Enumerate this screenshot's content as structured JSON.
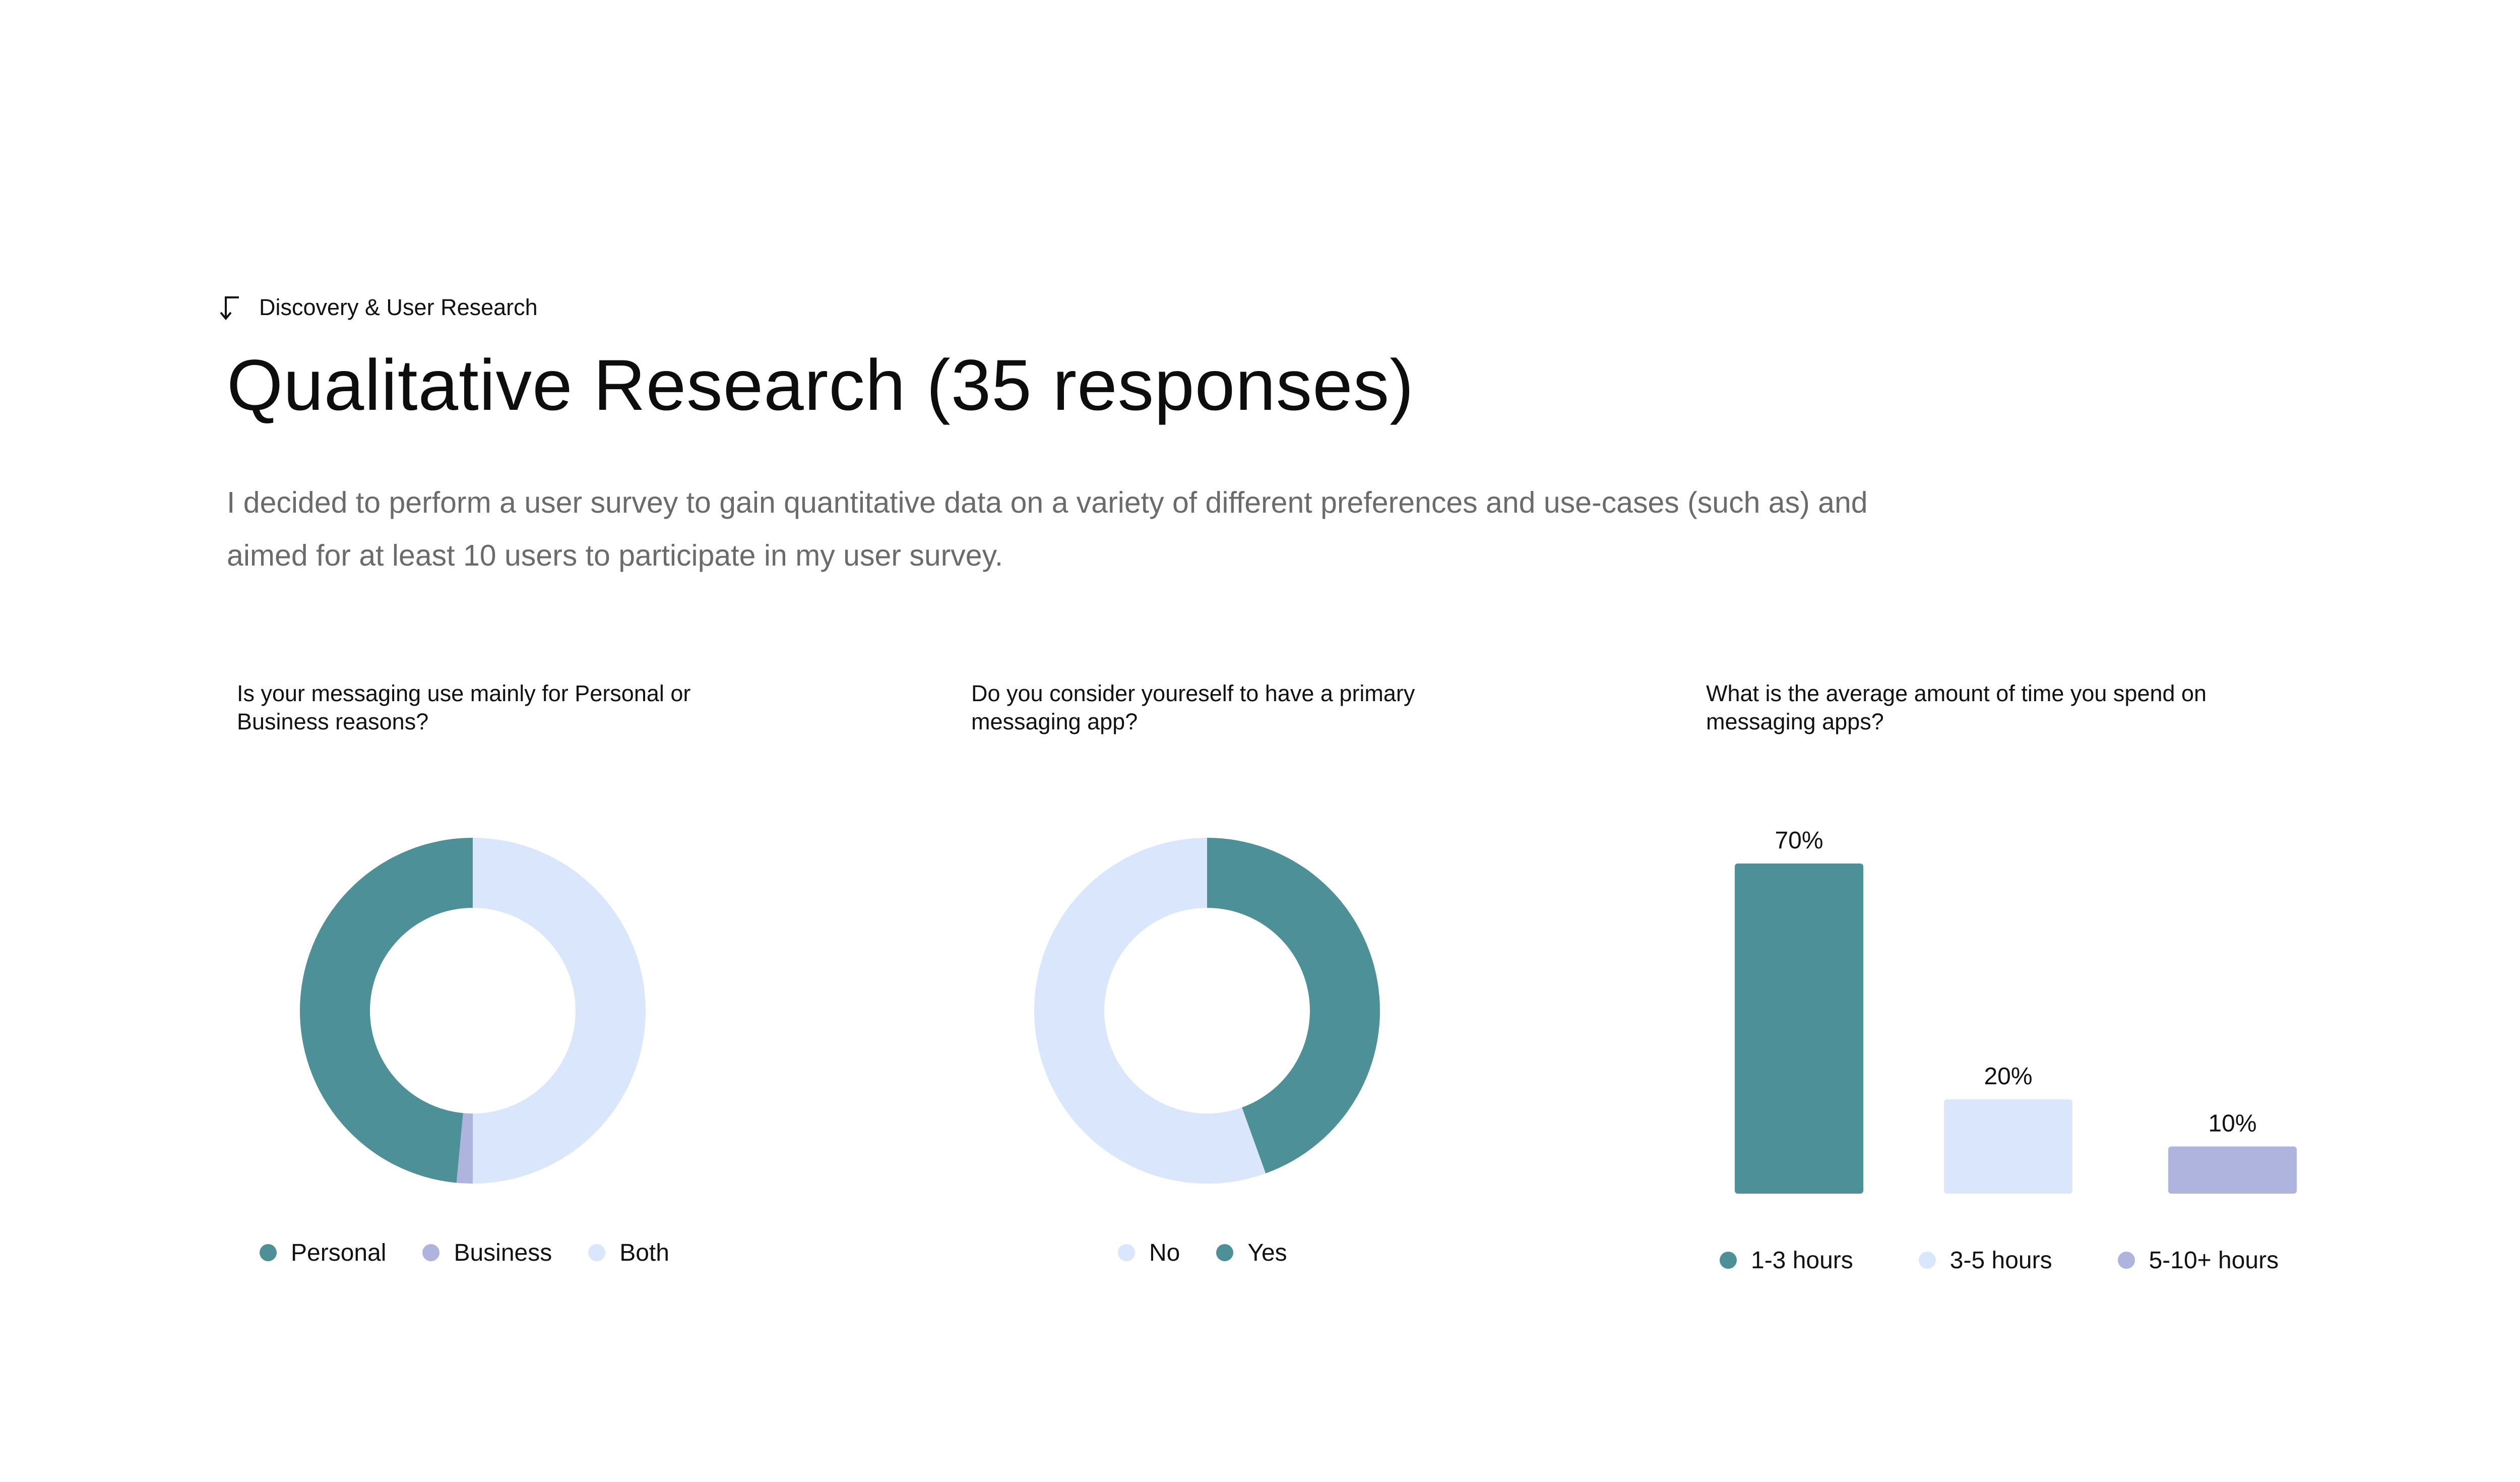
{
  "breadcrumb": {
    "icon": "corner-down-left-arrow-icon",
    "label": "Discovery & User Research"
  },
  "header": {
    "title": "Qualitative Research (35 responses)"
  },
  "intro": {
    "text": "I decided to perform a user survey to gain quantitative data on a variety of different preferences and use-cases (such as) and aimed for at least 10 users to participate in my user survey."
  },
  "colors": {
    "teal": "#4e9098",
    "light_blue": "#d9e6fc",
    "lavender": "#aeb4dd"
  },
  "chart_data": [
    {
      "type": "pie",
      "style": "donut",
      "title": "Is your messaging use mainly for Personal or Business reasons?",
      "categories": [
        "Personal",
        "Business",
        "Both"
      ],
      "values": [
        48.5,
        1.5,
        50
      ],
      "unit": "% (estimated from slice angles)",
      "colors": [
        "#4e9098",
        "#aeb4dd",
        "#d9e6fc"
      ],
      "legend": [
        {
          "label": "Personal",
          "color": "#4e9098"
        },
        {
          "label": "Business",
          "color": "#aeb4dd"
        },
        {
          "label": "Both",
          "color": "#d9e6fc"
        }
      ],
      "legend_position": "bottom"
    },
    {
      "type": "pie",
      "style": "donut",
      "title": "Do you consider youreself to have a primary messaging app?",
      "categories": [
        "Yes",
        "No"
      ],
      "values": [
        44.5,
        55.5
      ],
      "unit": "% (estimated from slice angles)",
      "colors": [
        "#4e9098",
        "#d9e6fc"
      ],
      "legend": [
        {
          "label": "No",
          "color": "#d9e6fc"
        },
        {
          "label": "Yes",
          "color": "#4e9098"
        }
      ],
      "legend_position": "bottom"
    },
    {
      "type": "bar",
      "title": "What is the average amount of time you spend on messaging apps?",
      "categories": [
        "1-3 hours",
        "3-5 hours",
        "5-10+ hours"
      ],
      "values": [
        70,
        20,
        10
      ],
      "value_labels": [
        "70%",
        "20%",
        "10%"
      ],
      "unit": "%",
      "ylim": [
        0,
        70
      ],
      "xlabel": "",
      "ylabel": "",
      "grid": false,
      "colors": [
        "#4e9098",
        "#d9e6fc",
        "#aeb4dd"
      ],
      "legend": [
        {
          "label": "1-3 hours",
          "color": "#4e9098"
        },
        {
          "label": "3-5 hours",
          "color": "#d9e6fc"
        },
        {
          "label": "5-10+ hours",
          "color": "#aeb4dd"
        }
      ],
      "legend_position": "bottom"
    }
  ]
}
